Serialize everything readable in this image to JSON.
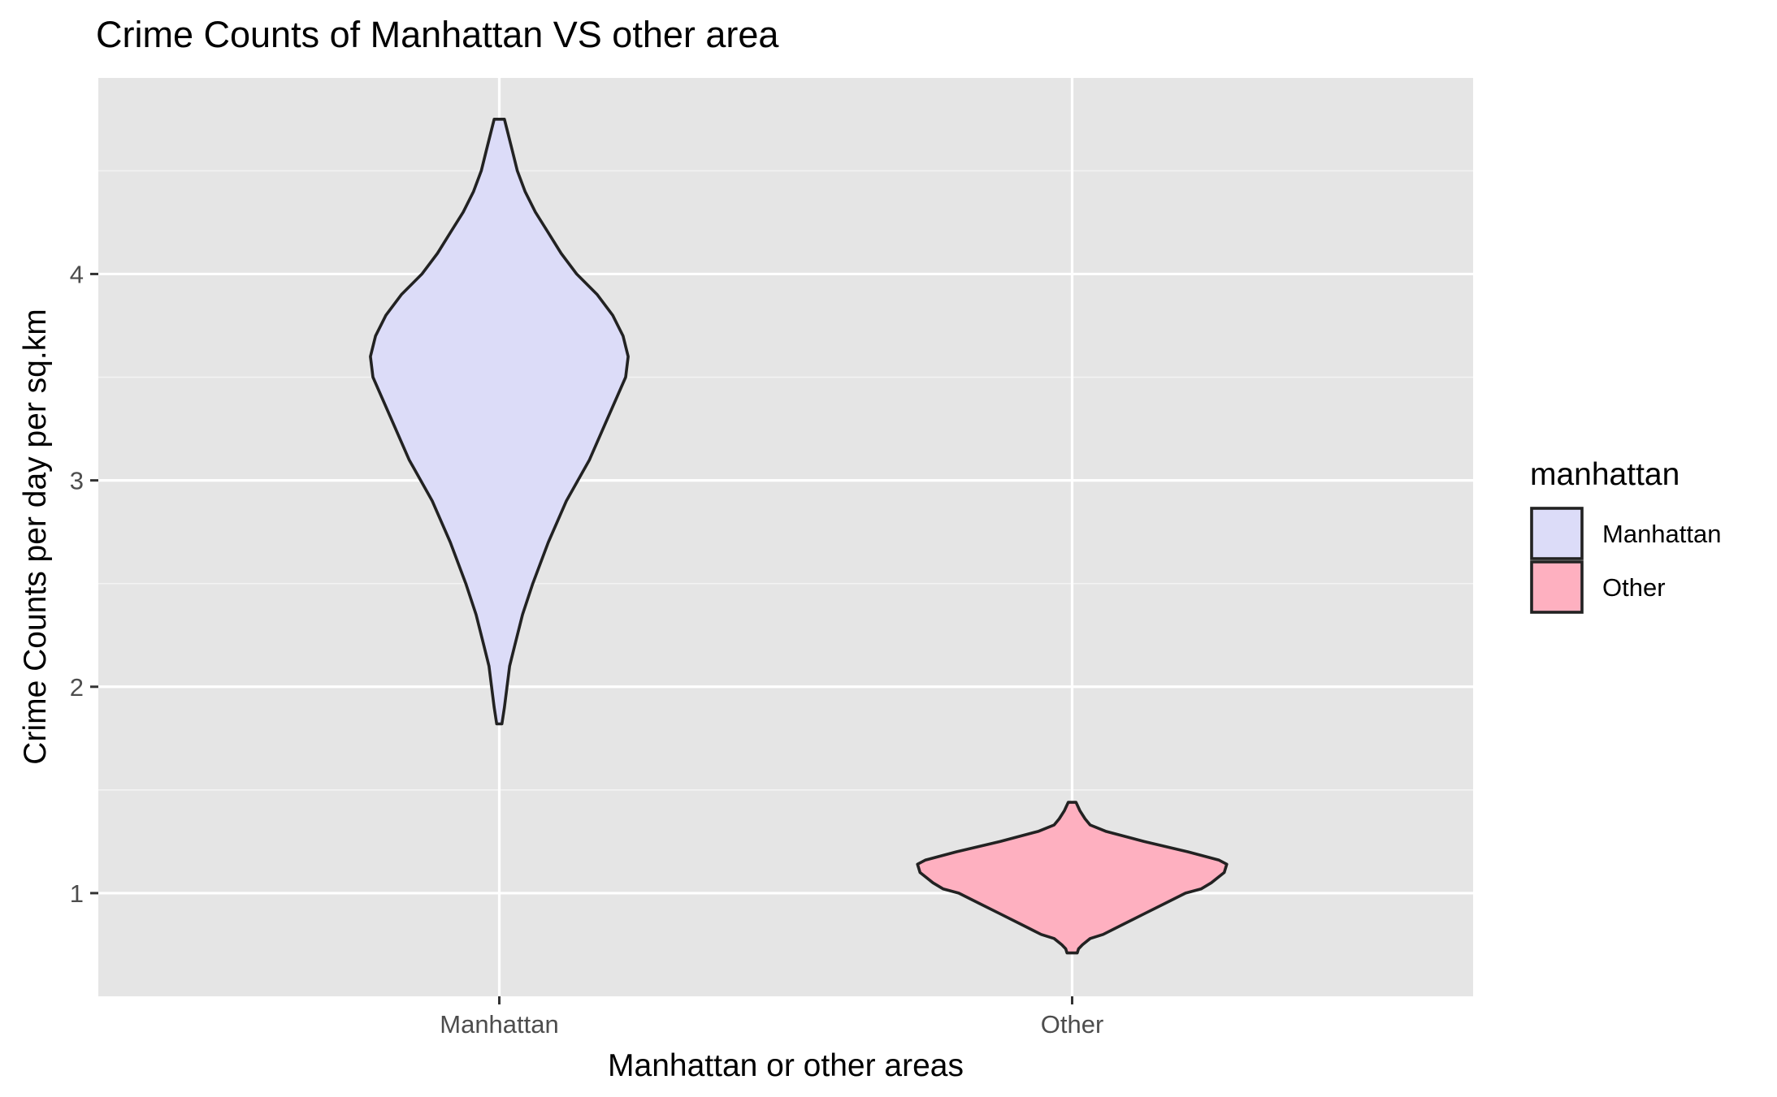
{
  "chart_data": {
    "type": "violin",
    "title": "Crime Counts of Manhattan VS other area",
    "xlabel": "Manhattan or other areas",
    "ylabel": "Crime Counts per day per sq.km",
    "ylim": [
      0.5,
      4.95
    ],
    "yticks": [
      1,
      2,
      3,
      4
    ],
    "ytick_labels": [
      "1",
      "2",
      "3",
      "4"
    ],
    "categories": [
      "Manhattan",
      "Other"
    ],
    "grid": true,
    "legend": {
      "title": "manhattan",
      "position": "right",
      "entries": [
        {
          "label": "Manhattan",
          "color": "#dcdcf8"
        },
        {
          "label": "Other",
          "color": "#feb0c0"
        }
      ]
    },
    "series": [
      {
        "name": "Manhattan",
        "color": "#dcdcf8",
        "min": 1.82,
        "max": 4.75,
        "density_profile": [
          [
            1.82,
            0.01
          ],
          [
            1.9,
            0.02
          ],
          [
            2.0,
            0.03
          ],
          [
            2.1,
            0.04
          ],
          [
            2.2,
            0.06
          ],
          [
            2.35,
            0.09
          ],
          [
            2.5,
            0.13
          ],
          [
            2.7,
            0.19
          ],
          [
            2.9,
            0.26
          ],
          [
            3.1,
            0.35
          ],
          [
            3.3,
            0.42
          ],
          [
            3.5,
            0.49
          ],
          [
            3.6,
            0.5
          ],
          [
            3.7,
            0.48
          ],
          [
            3.8,
            0.44
          ],
          [
            3.9,
            0.38
          ],
          [
            4.0,
            0.3
          ],
          [
            4.1,
            0.24
          ],
          [
            4.2,
            0.19
          ],
          [
            4.3,
            0.14
          ],
          [
            4.4,
            0.1
          ],
          [
            4.5,
            0.07
          ],
          [
            4.6,
            0.05
          ],
          [
            4.7,
            0.03
          ],
          [
            4.75,
            0.02
          ]
        ]
      },
      {
        "name": "Other",
        "color": "#feb0c0",
        "min": 0.71,
        "max": 1.44,
        "density_profile": [
          [
            0.71,
            0.02
          ],
          [
            0.73,
            0.025
          ],
          [
            0.75,
            0.04
          ],
          [
            0.78,
            0.07
          ],
          [
            0.8,
            0.12
          ],
          [
            0.85,
            0.2
          ],
          [
            0.9,
            0.28
          ],
          [
            0.95,
            0.36
          ],
          [
            1.0,
            0.44
          ],
          [
            1.02,
            0.5
          ],
          [
            1.05,
            0.54
          ],
          [
            1.1,
            0.59
          ],
          [
            1.14,
            0.6
          ],
          [
            1.16,
            0.57
          ],
          [
            1.2,
            0.45
          ],
          [
            1.25,
            0.28
          ],
          [
            1.3,
            0.13
          ],
          [
            1.33,
            0.07
          ],
          [
            1.36,
            0.05
          ],
          [
            1.4,
            0.03
          ],
          [
            1.44,
            0.015
          ]
        ]
      }
    ]
  }
}
